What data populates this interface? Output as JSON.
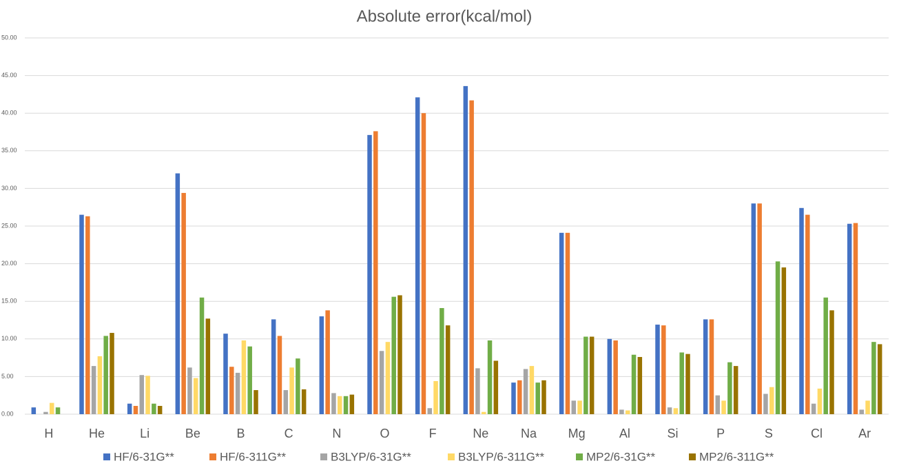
{
  "chart_data": {
    "type": "bar",
    "title": "Absolute error(kcal/mol)",
    "categories": [
      "H",
      "He",
      "Li",
      "Be",
      "B",
      "C",
      "N",
      "O",
      "F",
      "Ne",
      "Na",
      "Mg",
      "Al",
      "Si",
      "P",
      "S",
      "Cl",
      "Ar"
    ],
    "series": [
      {
        "name": "HF/6-31G**",
        "color": "#4472c4",
        "values": [
          0.9,
          26.5,
          1.4,
          32.0,
          10.7,
          12.6,
          13.0,
          37.1,
          42.1,
          43.6,
          4.2,
          24.1,
          10.0,
          11.9,
          12.6,
          28.0,
          27.4,
          25.3
        ]
      },
      {
        "name": "HF/6-311G**",
        "color": "#ed7d31",
        "values": [
          0,
          26.3,
          1.1,
          29.4,
          6.3,
          10.4,
          13.8,
          37.6,
          40.0,
          41.7,
          4.5,
          24.1,
          9.8,
          11.8,
          12.6,
          28.0,
          26.5,
          25.4
        ]
      },
      {
        "name": "B3LYP/6-31G**",
        "color": "#a5a5a5",
        "values": [
          0.3,
          6.4,
          5.2,
          6.2,
          5.5,
          3.2,
          2.8,
          8.4,
          0.8,
          6.1,
          6.0,
          1.8,
          0.6,
          0.9,
          2.5,
          2.7,
          1.4,
          0.6
        ]
      },
      {
        "name": "B3LYP/6-311G**",
        "color": "#ffd966",
        "values": [
          1.5,
          7.7,
          5.1,
          4.8,
          9.8,
          6.2,
          2.4,
          9.6,
          4.4,
          0.3,
          6.4,
          1.8,
          0.5,
          0.8,
          1.8,
          3.6,
          3.4,
          1.8
        ]
      },
      {
        "name": "MP2/6-31G**",
        "color": "#70ad47",
        "values": [
          0.9,
          10.4,
          1.4,
          15.5,
          9.0,
          7.4,
          2.4,
          15.6,
          14.1,
          9.8,
          4.2,
          10.3,
          7.9,
          8.2,
          6.9,
          20.3,
          15.5,
          9.6
        ]
      },
      {
        "name": "MP2/6-311G**",
        "color": "#997300",
        "values": [
          0,
          10.8,
          1.1,
          12.7,
          3.2,
          3.3,
          2.6,
          15.8,
          11.8,
          7.1,
          4.5,
          10.3,
          7.6,
          8.0,
          6.4,
          19.5,
          13.8,
          9.3
        ]
      }
    ],
    "ylim": [
      0,
      50
    ],
    "yticks": [
      {
        "value": 0,
        "label": "0.00"
      },
      {
        "value": 5,
        "label": "5.00"
      },
      {
        "value": 10,
        "label": "10.00"
      },
      {
        "value": 15,
        "label": "15.00"
      },
      {
        "value": 20,
        "label": "20.00"
      },
      {
        "value": 25,
        "label": "25.00"
      },
      {
        "value": 30,
        "label": "30.00"
      },
      {
        "value": 35,
        "label": "35.00"
      },
      {
        "value": 40,
        "label": "40.00"
      },
      {
        "value": 45,
        "label": "45.00"
      },
      {
        "value": 50,
        "label": "50.00"
      }
    ],
    "grid": true
  }
}
